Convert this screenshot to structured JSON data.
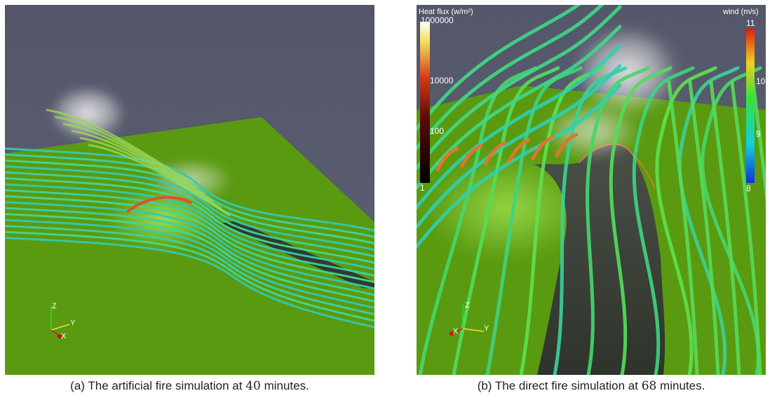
{
  "panel_a": {
    "caption_prefix": "(a) The artificial fire simulation at ",
    "caption_minutes": "40",
    "caption_suffix": " minutes.",
    "axes": {
      "z": "Z",
      "y": "Y",
      "x": "X"
    }
  },
  "panel_b": {
    "caption_prefix": "(b) The direct fire simulation at ",
    "caption_minutes": "68",
    "caption_suffix": " minutes.",
    "axes": {
      "z": "Z",
      "y": "Y",
      "x": "X"
    },
    "heat_legend": {
      "title": "Heat flux (w/m²)",
      "ticks": [
        "1000000",
        "10000",
        "100",
        "1"
      ]
    },
    "wind_legend": {
      "title": "wind (m/s)",
      "ticks": [
        "11",
        "10",
        "9",
        "8"
      ]
    }
  },
  "colors": {
    "sky": "#585c6e",
    "ground": "#5a9a10",
    "burnt": "#3c4238",
    "streamline": "#2fc9a8"
  }
}
